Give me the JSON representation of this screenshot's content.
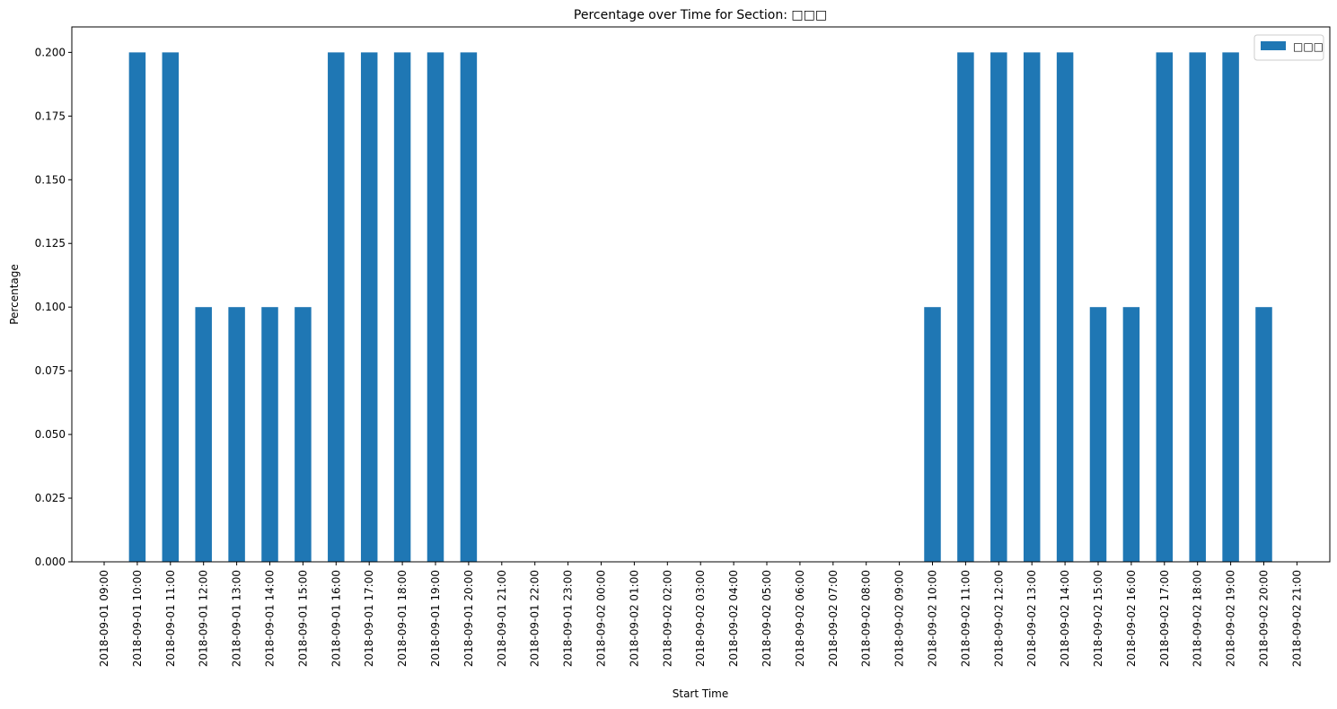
{
  "chart_data": {
    "type": "bar",
    "title": "Percentage over Time for Section: □□□",
    "xlabel": "Start Time",
    "ylabel": "Percentage",
    "ylim": [
      0,
      0.21
    ],
    "yticks": [
      "0.000",
      "0.025",
      "0.050",
      "0.075",
      "0.100",
      "0.125",
      "0.150",
      "0.175",
      "0.200"
    ],
    "categories": [
      "2018-09-01 09:00",
      "2018-09-01 10:00",
      "2018-09-01 11:00",
      "2018-09-01 12:00",
      "2018-09-01 13:00",
      "2018-09-01 14:00",
      "2018-09-01 15:00",
      "2018-09-01 16:00",
      "2018-09-01 17:00",
      "2018-09-01 18:00",
      "2018-09-01 19:00",
      "2018-09-01 20:00",
      "2018-09-01 21:00",
      "2018-09-01 22:00",
      "2018-09-01 23:00",
      "2018-09-02 00:00",
      "2018-09-02 01:00",
      "2018-09-02 02:00",
      "2018-09-02 03:00",
      "2018-09-02 04:00",
      "2018-09-02 05:00",
      "2018-09-02 06:00",
      "2018-09-02 07:00",
      "2018-09-02 08:00",
      "2018-09-02 09:00",
      "2018-09-02 10:00",
      "2018-09-02 11:00",
      "2018-09-02 12:00",
      "2018-09-02 13:00",
      "2018-09-02 14:00",
      "2018-09-02 15:00",
      "2018-09-02 16:00",
      "2018-09-02 17:00",
      "2018-09-02 18:00",
      "2018-09-02 19:00",
      "2018-09-02 20:00",
      "2018-09-02 21:00"
    ],
    "series": [
      {
        "name": "□□□",
        "color": "#1f77b4",
        "values": [
          0,
          0.2,
          0.2,
          0.1,
          0.1,
          0.1,
          0.1,
          0.2,
          0.2,
          0.2,
          0.2,
          0.2,
          0,
          0,
          0,
          0,
          0,
          0,
          0,
          0,
          0,
          0,
          0,
          0,
          0,
          0.1,
          0.2,
          0.2,
          0.2,
          0.2,
          0.1,
          0.1,
          0.2,
          0.2,
          0.2,
          0.1,
          0
        ]
      }
    ],
    "legend_position": "top-right",
    "grid": false
  }
}
